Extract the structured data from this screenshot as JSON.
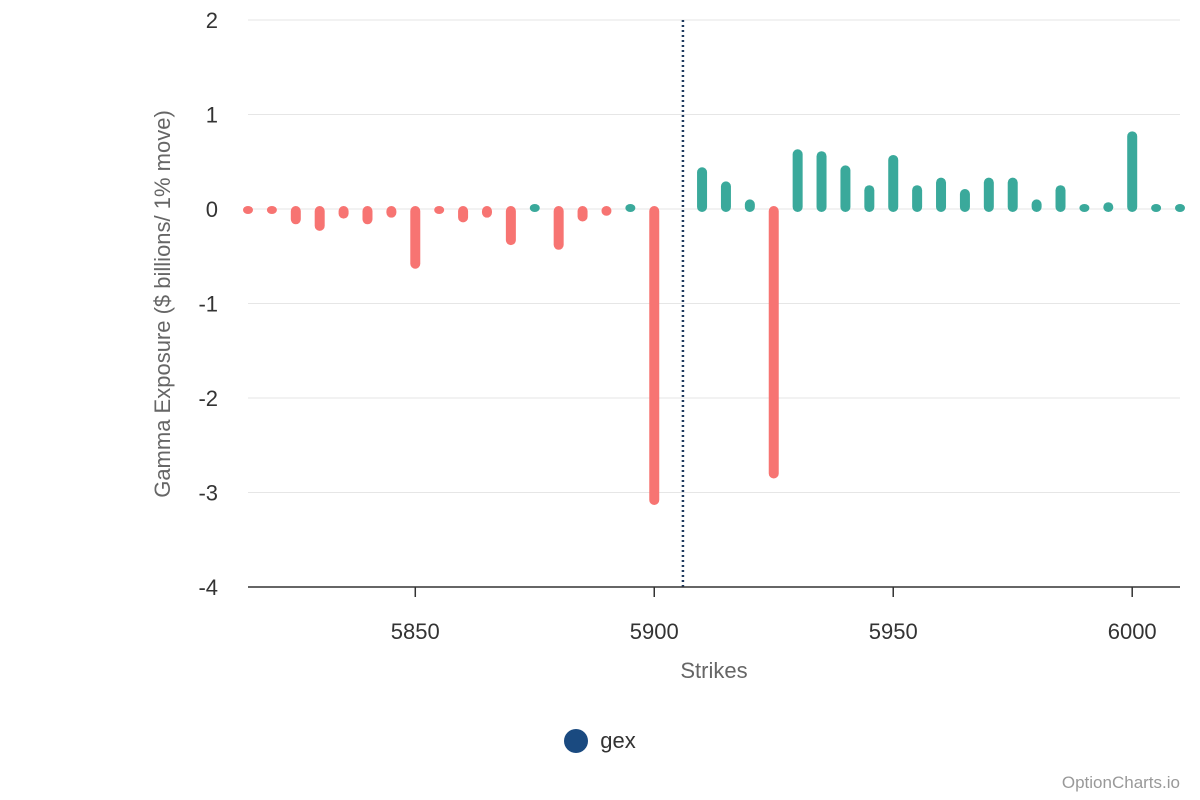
{
  "chart_data": {
    "type": "bar",
    "title": "",
    "xlabel": "Strikes",
    "ylabel": "Gamma Exposure ($ billions/ 1% move)",
    "xlim": [
      5815,
      6010
    ],
    "ylim": [
      -4,
      2
    ],
    "x_ticks": [
      5850,
      5900,
      5950,
      6000
    ],
    "y_ticks": [
      2,
      1,
      0,
      -1,
      -2,
      -3,
      -4
    ],
    "grid": true,
    "reference_line": {
      "x": 5906,
      "style": "dotted",
      "color": "#1f3a5f"
    },
    "colors": {
      "positive": "#3aa99b",
      "negative": "#f77472"
    },
    "series": [
      {
        "name": "gex",
        "x": [
          5815,
          5820,
          5825,
          5830,
          5835,
          5840,
          5845,
          5850,
          5855,
          5860,
          5865,
          5870,
          5875,
          5880,
          5885,
          5890,
          5895,
          5900,
          5910,
          5915,
          5920,
          5925,
          5930,
          5935,
          5940,
          5945,
          5950,
          5955,
          5960,
          5965,
          5970,
          5975,
          5980,
          5985,
          5990,
          5995,
          6000,
          6005,
          6010
        ],
        "values": [
          -0.01,
          -0.02,
          -0.13,
          -0.2,
          -0.07,
          -0.13,
          -0.06,
          -0.6,
          -0.02,
          -0.11,
          -0.06,
          -0.35,
          0.02,
          -0.4,
          -0.1,
          -0.04,
          0.02,
          -3.1,
          0.41,
          0.26,
          0.07,
          -2.82,
          0.6,
          0.58,
          0.43,
          0.22,
          0.54,
          0.22,
          0.3,
          0.18,
          0.3,
          0.3,
          0.07,
          0.22,
          0.02,
          0.04,
          0.79,
          0.02,
          0.02
        ]
      }
    ]
  },
  "legend": {
    "label": "gex",
    "color": "#1a4a80"
  },
  "credit": "OptionCharts.io"
}
